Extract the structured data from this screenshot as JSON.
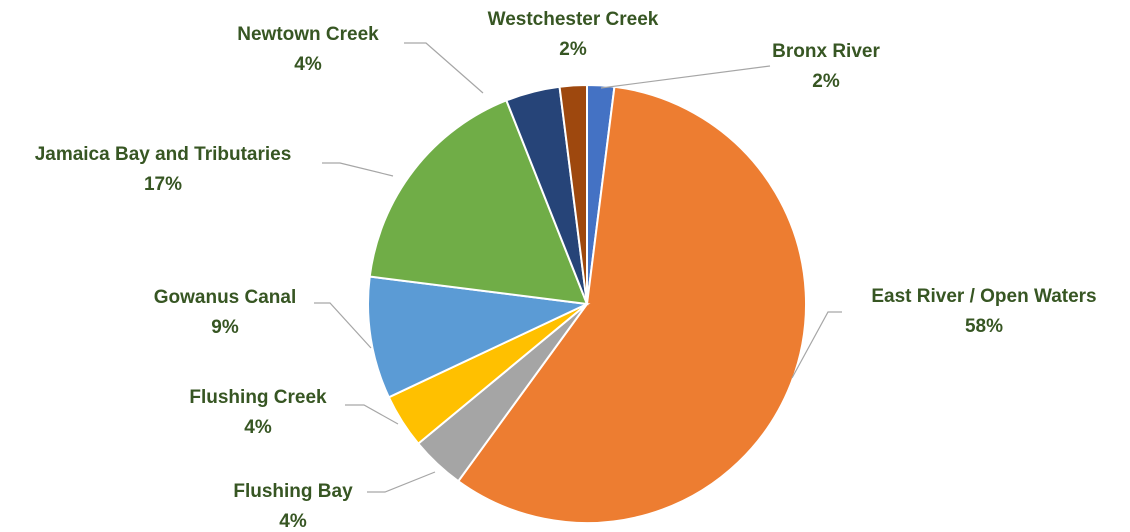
{
  "chart_data": {
    "type": "pie",
    "title": "",
    "legend": "none",
    "label_color": "#375623",
    "start": "12 o'clock",
    "direction": "clockwise",
    "slices": [
      {
        "name": "Bronx River",
        "value": 2,
        "label": "2%",
        "color": "#4472c4"
      },
      {
        "name": "East River / Open Waters",
        "value": 58,
        "label": "58%",
        "color": "#ed7d31"
      },
      {
        "name": "Flushing Bay",
        "value": 4,
        "label": "4%",
        "color": "#a5a5a5"
      },
      {
        "name": "Flushing Creek",
        "value": 4,
        "label": "4%",
        "color": "#ffc000"
      },
      {
        "name": "Gowanus Canal",
        "value": 9,
        "label": "9%",
        "color": "#5b9bd5"
      },
      {
        "name": "Jamaica Bay and Tributaries",
        "value": 17,
        "label": "17%",
        "color": "#70ad47"
      },
      {
        "name": "Newtown Creek",
        "value": 4,
        "label": "4%",
        "color": "#264478"
      },
      {
        "name": "Westchester Creek",
        "value": 2,
        "label": "2%",
        "color": "#9e480e"
      }
    ]
  }
}
